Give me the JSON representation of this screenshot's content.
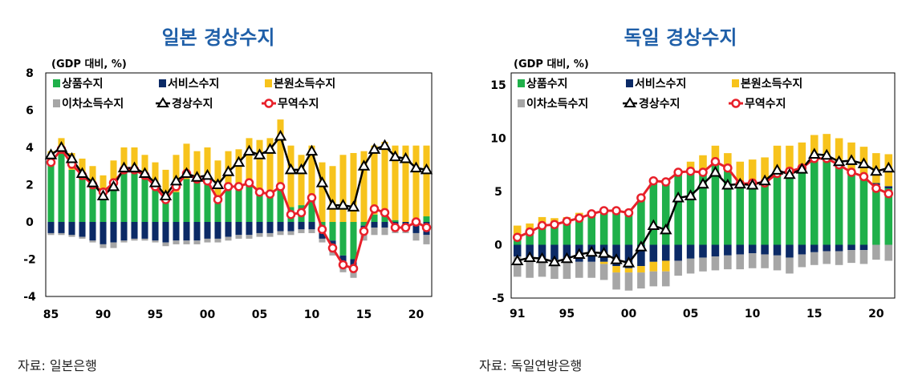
{
  "sources": {
    "left": "자료: 일본은행",
    "right": "자료: 독일연방은행"
  },
  "colors": {
    "goods": "#1fb04a",
    "services": "#0b2a66",
    "primary_income": "#f7c31c",
    "secondary_income": "#a6a6a6",
    "current_account": "#000000",
    "trade": "#e8202a"
  },
  "chart_data": [
    {
      "type": "bar",
      "title": "일본 경상수지",
      "unit": "(GDP 대비, %)",
      "ylim": [
        -4,
        8
      ],
      "yticks": [
        -4,
        -2,
        0,
        2,
        4,
        6,
        8
      ],
      "x": [
        1985,
        1986,
        1987,
        1988,
        1989,
        1990,
        1991,
        1992,
        1993,
        1994,
        1995,
        1996,
        1997,
        1998,
        1999,
        2000,
        2001,
        2002,
        2003,
        2004,
        2005,
        2006,
        2007,
        2008,
        2009,
        2010,
        2011,
        2012,
        2013,
        2014,
        2015,
        2016,
        2017,
        2018,
        2019,
        2020,
        2021
      ],
      "xtick_labels": [
        "85",
        "90",
        "95",
        "00",
        "05",
        "10",
        "15",
        "20"
      ],
      "xtick_years": [
        1985,
        1990,
        1995,
        2000,
        2005,
        2010,
        2015,
        2020
      ],
      "legend": [
        {
          "key": "goods",
          "label": "상품수지",
          "kind": "bar"
        },
        {
          "key": "services",
          "label": "서비스수지",
          "kind": "bar"
        },
        {
          "key": "primary_income",
          "label": "본원소득수지",
          "kind": "bar"
        },
        {
          "key": "secondary_income",
          "label": "이차소득수지",
          "kind": "bar"
        },
        {
          "key": "current_account",
          "label": "경상수지",
          "kind": "line-triangle"
        },
        {
          "key": "trade",
          "label": "무역수지",
          "kind": "line-circle"
        }
      ],
      "series": [
        {
          "key": "goods",
          "name": "상품수지",
          "values": [
            3.3,
            3.8,
            2.8,
            2.4,
            1.8,
            1.4,
            2.0,
            2.7,
            2.7,
            2.4,
            1.9,
            1.2,
            1.6,
            2.3,
            2.2,
            2.3,
            1.3,
            1.9,
            2.0,
            2.2,
            1.7,
            1.5,
            1.9,
            0.8,
            0.9,
            1.4,
            -0.4,
            -1.0,
            -1.8,
            -2.0,
            -0.2,
            0.4,
            0.4,
            0.1,
            0.0,
            0.1,
            0.3
          ]
        },
        {
          "key": "services",
          "name": "서비스수지",
          "values": [
            -0.6,
            -0.6,
            -0.7,
            -0.8,
            -1.0,
            -1.2,
            -1.1,
            -1.0,
            -0.9,
            -0.9,
            -1.0,
            -1.1,
            -1.0,
            -1.0,
            -1.0,
            -0.9,
            -0.9,
            -0.8,
            -0.7,
            -0.7,
            -0.6,
            -0.6,
            -0.5,
            -0.5,
            -0.4,
            -0.4,
            -0.5,
            -0.6,
            -0.7,
            -0.7,
            -0.4,
            -0.3,
            -0.3,
            -0.2,
            -0.2,
            -0.6,
            -0.7
          ]
        },
        {
          "key": "primary_income",
          "name": "본원소득수지",
          "values": [
            0.5,
            0.7,
            0.9,
            1.0,
            1.2,
            1.1,
            1.3,
            1.3,
            1.3,
            1.2,
            1.3,
            1.6,
            2.0,
            1.9,
            1.6,
            1.7,
            2.0,
            1.9,
            1.9,
            2.3,
            2.7,
            3.0,
            3.6,
            3.3,
            2.7,
            2.7,
            3.2,
            3.0,
            3.6,
            3.7,
            3.8,
            3.7,
            3.9,
            4.0,
            4.1,
            4.0,
            3.8
          ]
        },
        {
          "key": "secondary_income",
          "name": "이차소득수지",
          "values": [
            -0.1,
            -0.1,
            -0.1,
            -0.1,
            -0.1,
            -0.2,
            -0.3,
            -0.1,
            -0.1,
            -0.1,
            -0.1,
            -0.2,
            -0.2,
            -0.2,
            -0.2,
            -0.2,
            -0.2,
            -0.2,
            -0.2,
            -0.2,
            -0.2,
            -0.2,
            -0.2,
            -0.2,
            -0.2,
            -0.2,
            -0.2,
            -0.2,
            -0.2,
            -0.3,
            -0.4,
            -0.4,
            -0.4,
            -0.4,
            -0.4,
            -0.4,
            -0.5
          ]
        },
        {
          "key": "current_account",
          "name": "경상수지",
          "values": [
            3.6,
            4.0,
            3.4,
            2.6,
            2.1,
            1.4,
            1.9,
            2.9,
            2.9,
            2.6,
            2.1,
            1.4,
            2.2,
            2.6,
            2.4,
            2.5,
            2.0,
            2.7,
            3.2,
            3.8,
            3.6,
            3.9,
            4.6,
            2.8,
            2.8,
            3.8,
            2.1,
            0.9,
            0.9,
            0.8,
            3.0,
            3.9,
            4.1,
            3.5,
            3.4,
            2.9,
            2.8
          ]
        },
        {
          "key": "trade",
          "name": "무역수지",
          "values": [
            3.2,
            3.9,
            3.1,
            2.5,
            2.0,
            1.6,
            2.1,
            2.8,
            2.8,
            2.5,
            1.9,
            1.2,
            1.9,
            2.6,
            2.3,
            2.2,
            1.2,
            1.9,
            1.9,
            2.1,
            1.6,
            1.5,
            1.9,
            0.4,
            0.5,
            1.3,
            -0.4,
            -1.4,
            -2.3,
            -2.5,
            -0.5,
            0.7,
            0.5,
            -0.3,
            -0.3,
            0.0,
            -0.3
          ]
        }
      ]
    },
    {
      "type": "bar",
      "title": "독일 경상수지",
      "unit": "(GDP 대비, %)",
      "ylim": [
        -5,
        15
      ],
      "yticks": [
        -5,
        0,
        5,
        10,
        15
      ],
      "x": [
        1991,
        1992,
        1993,
        1994,
        1995,
        1996,
        1997,
        1998,
        1999,
        2000,
        2001,
        2002,
        2003,
        2004,
        2005,
        2006,
        2007,
        2008,
        2009,
        2010,
        2011,
        2012,
        2013,
        2014,
        2015,
        2016,
        2017,
        2018,
        2019,
        2020,
        2021
      ],
      "xtick_labels": [
        "91",
        "95",
        "00",
        "05",
        "10",
        "15",
        "20"
      ],
      "xtick_years": [
        1991,
        1995,
        2000,
        2005,
        2010,
        2015,
        2020
      ],
      "legend": [
        {
          "key": "goods",
          "label": "상품수지",
          "kind": "bar"
        },
        {
          "key": "services",
          "label": "서비스수지",
          "kind": "bar"
        },
        {
          "key": "primary_income",
          "label": "본원소득수지",
          "kind": "bar"
        },
        {
          "key": "secondary_income",
          "label": "이차소득수지",
          "kind": "bar"
        },
        {
          "key": "current_account",
          "label": "경상수지",
          "kind": "line-triangle"
        },
        {
          "key": "trade",
          "label": "무역수지",
          "kind": "line-circle"
        }
      ],
      "series": [
        {
          "key": "goods",
          "name": "상품수지",
          "values": [
            0.9,
            1.3,
            1.7,
            1.9,
            2.2,
            2.5,
            2.8,
            3.0,
            3.1,
            2.8,
            4.2,
            5.9,
            6.1,
            6.7,
            6.8,
            6.8,
            7.5,
            7.1,
            5.6,
            5.9,
            5.7,
            6.5,
            6.7,
            7.2,
            7.9,
            7.9,
            7.4,
            6.9,
            6.5,
            5.6,
            5.3
          ]
        },
        {
          "key": "services",
          "name": "서비스수지",
          "values": [
            -1.1,
            -1.3,
            -1.3,
            -1.4,
            -1.6,
            -1.6,
            -1.6,
            -1.6,
            -2.0,
            -2.2,
            -2.0,
            -1.6,
            -1.5,
            -1.5,
            -1.3,
            -1.2,
            -1.1,
            -1.0,
            -0.9,
            -0.8,
            -0.9,
            -1.0,
            -1.2,
            -0.9,
            -0.7,
            -0.6,
            -0.6,
            -0.5,
            -0.5,
            0.2,
            0.2
          ]
        },
        {
          "key": "primary_income",
          "name": "본원소득수지",
          "values": [
            0.9,
            0.7,
            0.9,
            0.6,
            0.4,
            0.5,
            0.3,
            -0.2,
            -0.6,
            -0.4,
            -0.6,
            -0.9,
            -1.0,
            0.3,
            1.0,
            1.6,
            1.8,
            1.5,
            2.2,
            2.1,
            2.5,
            2.8,
            2.6,
            2.4,
            2.4,
            2.5,
            2.6,
            2.7,
            2.7,
            2.8,
            3.0
          ]
        },
        {
          "key": "secondary_income",
          "name": "이차소득수지",
          "values": [
            -1.9,
            -1.8,
            -1.7,
            -1.8,
            -1.6,
            -1.5,
            -1.5,
            -1.5,
            -1.6,
            -1.7,
            -1.5,
            -1.4,
            -1.4,
            -1.4,
            -1.4,
            -1.3,
            -1.3,
            -1.3,
            -1.4,
            -1.4,
            -1.3,
            -1.4,
            -1.5,
            -1.2,
            -1.2,
            -1.2,
            -1.3,
            -1.2,
            -1.3,
            -1.4,
            -1.5
          ]
        },
        {
          "key": "current_account",
          "name": "경상수지",
          "values": [
            -1.5,
            -1.2,
            -1.3,
            -1.6,
            -1.3,
            -0.9,
            -0.7,
            -0.8,
            -1.4,
            -1.7,
            -0.2,
            1.8,
            1.4,
            4.4,
            4.6,
            5.7,
            6.8,
            5.6,
            5.7,
            5.6,
            6.0,
            7.0,
            6.6,
            7.1,
            8.5,
            8.4,
            7.8,
            7.9,
            7.6,
            6.9,
            7.2
          ]
        },
        {
          "key": "trade",
          "name": "무역수지",
          "values": [
            0.7,
            1.2,
            1.8,
            1.9,
            2.2,
            2.5,
            2.9,
            3.2,
            3.2,
            3.0,
            4.4,
            6.0,
            5.9,
            6.8,
            6.9,
            6.8,
            7.8,
            7.2,
            5.7,
            5.8,
            5.8,
            6.7,
            6.9,
            7.2,
            8.1,
            8.1,
            7.5,
            6.8,
            6.4,
            5.3,
            4.8
          ]
        }
      ]
    }
  ]
}
